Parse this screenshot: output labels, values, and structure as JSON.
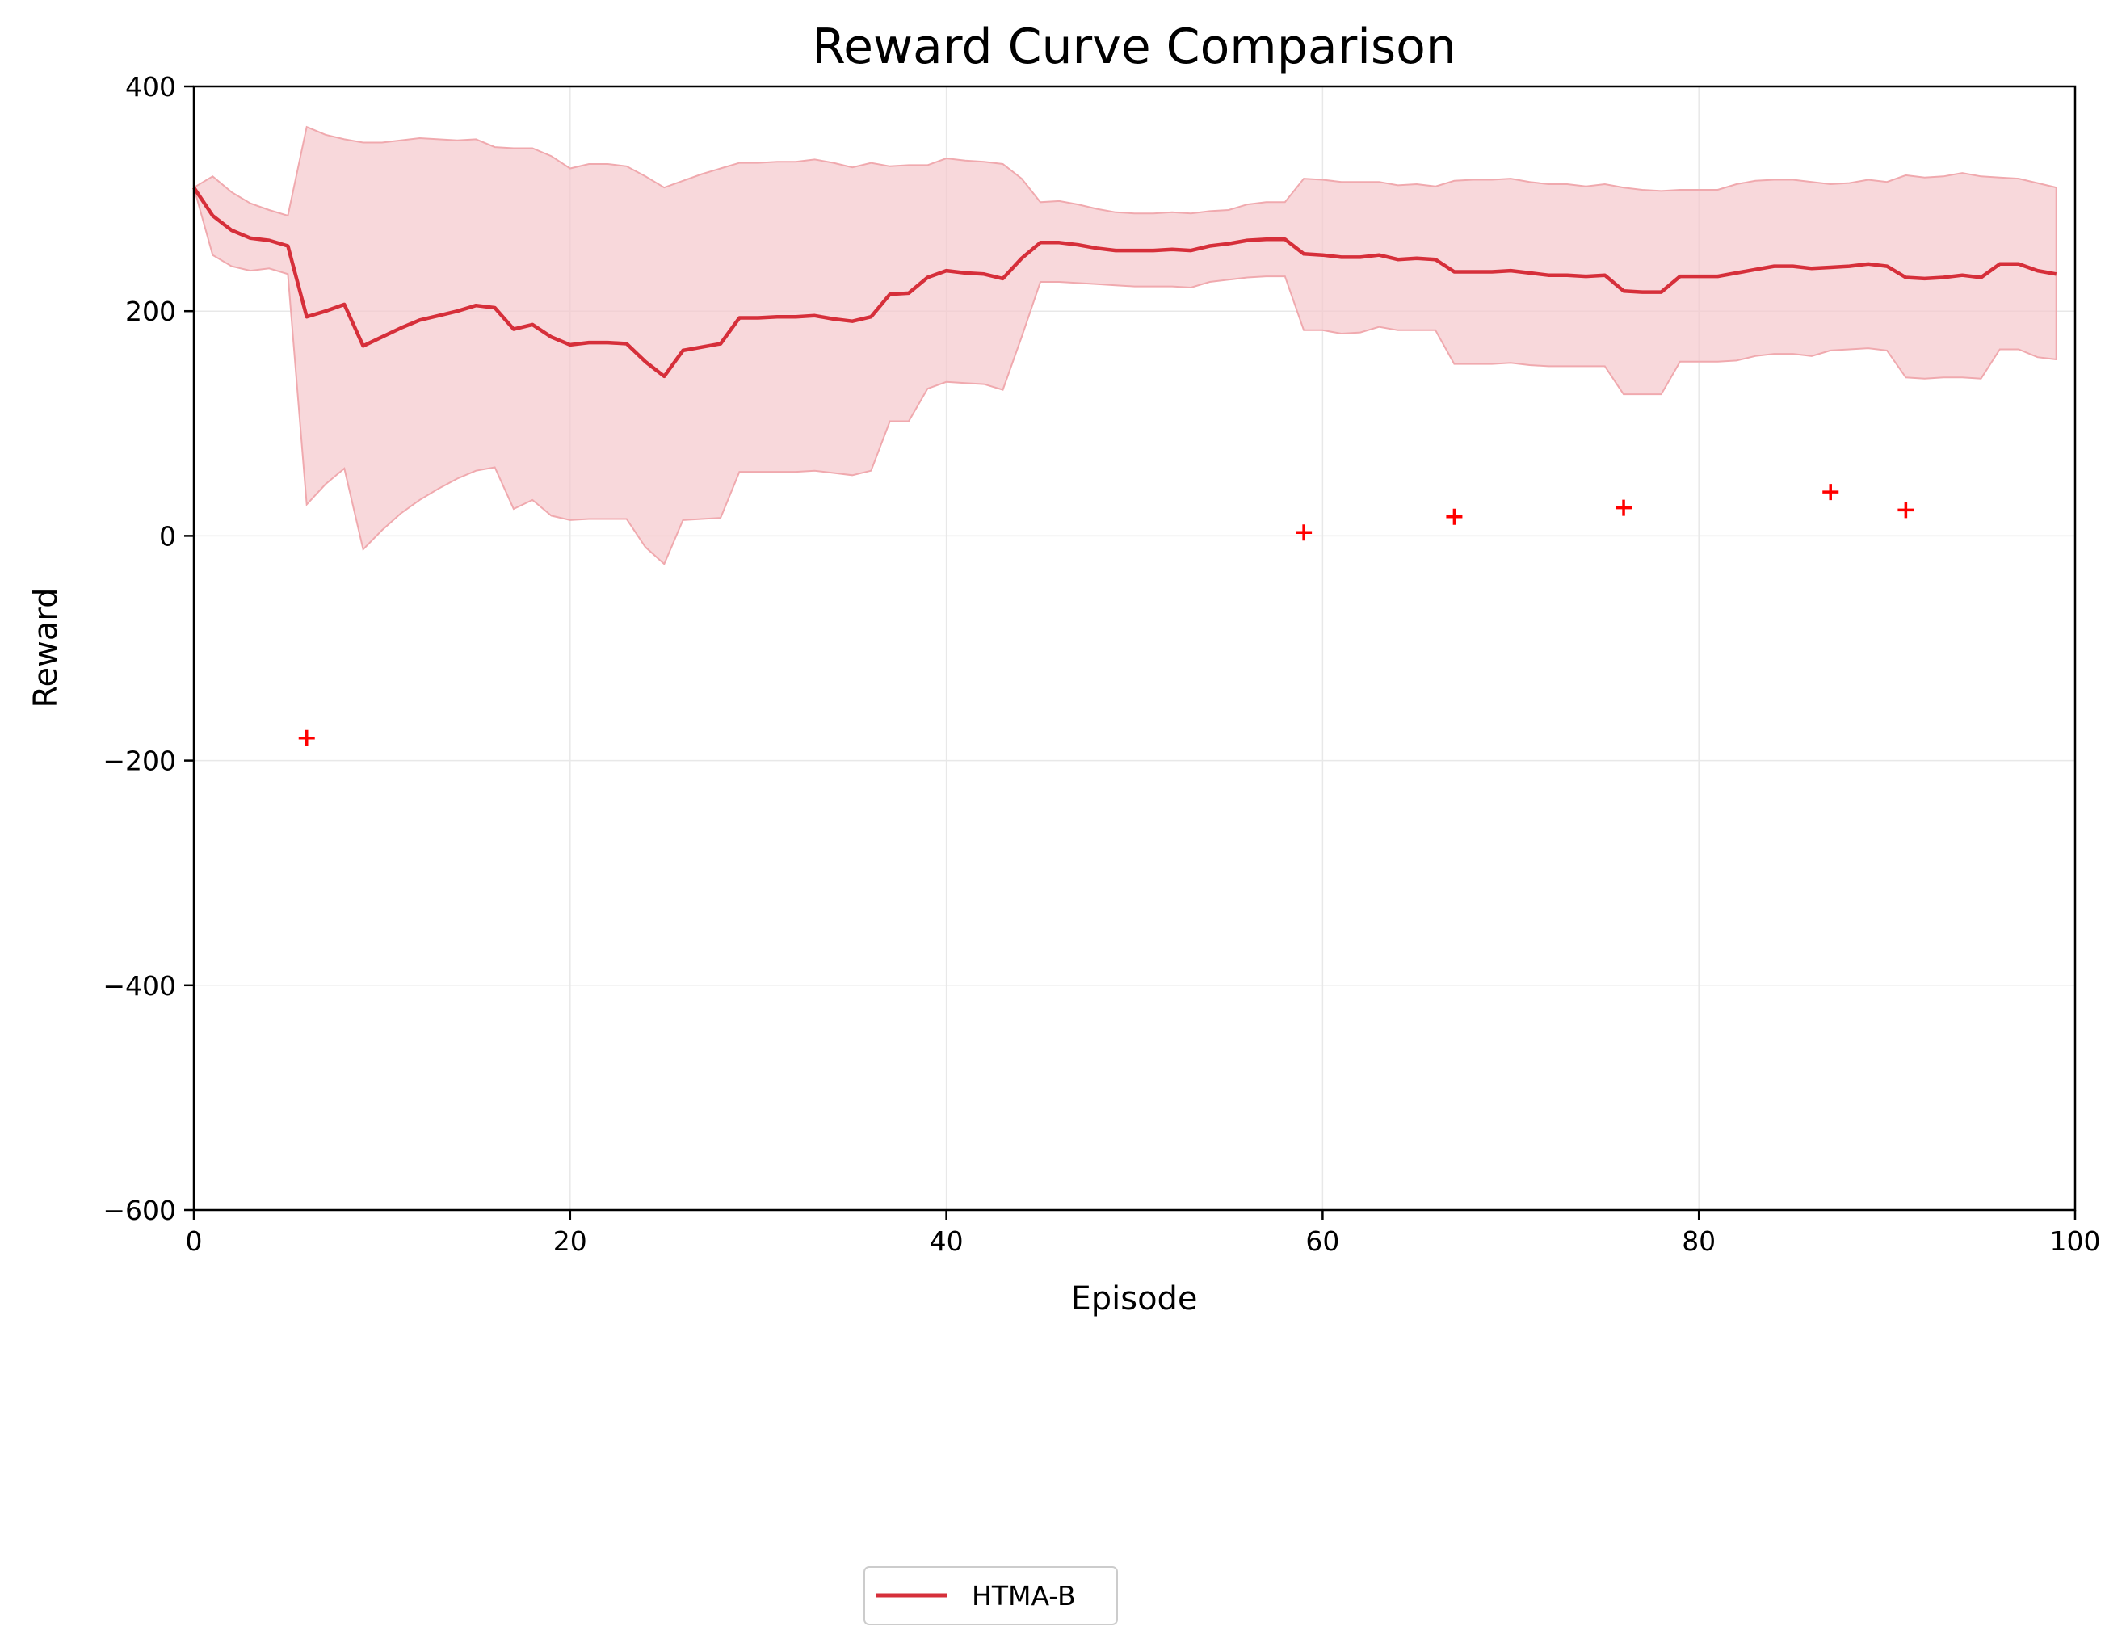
{
  "chart_data": {
    "type": "line",
    "title": "Reward Curve Comparison",
    "xlabel": "Episode",
    "ylabel": "Reward",
    "xlim": [
      0,
      100
    ],
    "ylim": [
      -600,
      400
    ],
    "xticks": [
      0,
      20,
      40,
      60,
      80,
      100
    ],
    "yticks": [
      -600,
      -400,
      -200,
      0,
      200,
      400
    ],
    "xtick_labels": [
      "0",
      "20",
      "40",
      "60",
      "80",
      "100"
    ],
    "ytick_labels": [
      "−600",
      "−400",
      "−200",
      "0",
      "200",
      "400"
    ],
    "grid": true,
    "legend_position": "bottom-center",
    "colors": {
      "line": "#d62f3a",
      "band": "#f5c6ca",
      "band_edge": "#f0a9ae",
      "markers": "#ff0000",
      "grid": "#e8e8e8"
    },
    "series": [
      {
        "name": "HTMA-B",
        "x": [
          0,
          1,
          2,
          3,
          4,
          5,
          6,
          7,
          8,
          9,
          10,
          11,
          12,
          13,
          14,
          15,
          16,
          17,
          18,
          19,
          20,
          21,
          22,
          23,
          24,
          25,
          26,
          27,
          28,
          29,
          30,
          31,
          32,
          33,
          34,
          35,
          36,
          37,
          38,
          39,
          40,
          41,
          42,
          43,
          44,
          45,
          46,
          47,
          48,
          49,
          50,
          51,
          52,
          53,
          54,
          55,
          56,
          57,
          58,
          59,
          60,
          61,
          62,
          63,
          64,
          65,
          66,
          67,
          68,
          69,
          70,
          71,
          72,
          73,
          74,
          75,
          76,
          77,
          78,
          79,
          80,
          81,
          82,
          83,
          84,
          85,
          86,
          87,
          88,
          89,
          90,
          91,
          92,
          93,
          94,
          95,
          96,
          97,
          98,
          99
        ],
        "mean": [
          310,
          285,
          272,
          265,
          263,
          258,
          195,
          200,
          206,
          169,
          177,
          185,
          192,
          196,
          200,
          205,
          203,
          184,
          188,
          177,
          170,
          172,
          172,
          171,
          155,
          142,
          165,
          168,
          171,
          194,
          194,
          195,
          195,
          196,
          193,
          191,
          195,
          215,
          216,
          230,
          236,
          234,
          233,
          229,
          247,
          261,
          261,
          259,
          256,
          254,
          254,
          254,
          255,
          254,
          258,
          260,
          263,
          264,
          264,
          251,
          250,
          248,
          248,
          250,
          246,
          247,
          246,
          235,
          235,
          235,
          236,
          234,
          232,
          232,
          231,
          232,
          218,
          217,
          217,
          231,
          231,
          231,
          234,
          237,
          240,
          240,
          238,
          239,
          240,
          242,
          240,
          230,
          229,
          230,
          232,
          230,
          242,
          242,
          236,
          233
        ],
        "upper": [
          310,
          320,
          306,
          296,
          290,
          285,
          364,
          357,
          353,
          350,
          350,
          352,
          354,
          353,
          352,
          353,
          346,
          345,
          345,
          338,
          327,
          331,
          331,
          329,
          320,
          310,
          316,
          322,
          327,
          332,
          332,
          333,
          333,
          335,
          332,
          328,
          332,
          329,
          330,
          330,
          336,
          334,
          333,
          331,
          318,
          297,
          298,
          295,
          291,
          288,
          287,
          287,
          288,
          287,
          289,
          290,
          295,
          297,
          297,
          318,
          317,
          315,
          315,
          315,
          312,
          313,
          311,
          316,
          317,
          317,
          318,
          315,
          313,
          313,
          311,
          313,
          310,
          308,
          307,
          308,
          308,
          308,
          313,
          316,
          317,
          317,
          315,
          313,
          314,
          317,
          315,
          321,
          319,
          320,
          323,
          320,
          319,
          318,
          314,
          310
        ],
        "lower": [
          310,
          250,
          240,
          236,
          238,
          233,
          28,
          46,
          60,
          -12,
          5,
          20,
          32,
          42,
          51,
          58,
          61,
          24,
          32,
          18,
          14,
          15,
          15,
          15,
          -10,
          -25,
          14,
          15,
          16,
          57,
          57,
          57,
          57,
          58,
          56,
          54,
          58,
          102,
          102,
          131,
          137,
          136,
          135,
          130,
          177,
          226,
          226,
          225,
          224,
          223,
          222,
          222,
          222,
          221,
          226,
          228,
          230,
          231,
          231,
          183,
          183,
          180,
          181,
          186,
          183,
          183,
          183,
          153,
          153,
          153,
          154,
          152,
          151,
          151,
          151,
          151,
          126,
          126,
          126,
          155,
          155,
          155,
          156,
          160,
          162,
          162,
          160,
          165,
          166,
          167,
          165,
          141,
          140,
          141,
          141,
          140,
          166,
          166,
          159,
          157
        ]
      }
    ],
    "markers": {
      "symbol": "+",
      "x": [
        6,
        59,
        67,
        76,
        87,
        91
      ],
      "y": [
        -180,
        3,
        17,
        25,
        39,
        23
      ]
    }
  }
}
